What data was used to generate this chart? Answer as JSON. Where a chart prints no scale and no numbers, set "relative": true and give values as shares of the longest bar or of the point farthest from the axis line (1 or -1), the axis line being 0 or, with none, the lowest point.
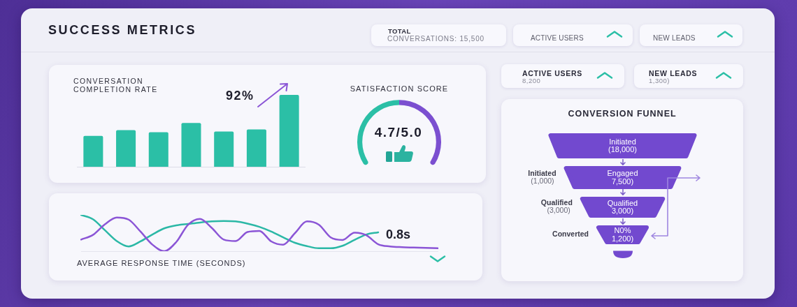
{
  "chart_data": [
    {
      "type": "other",
      "title": "SUCCESS METRICS"
    },
    {
      "type": "other",
      "title": "TOTAL",
      "subtitle": "CONVERSATIONS: 15,500"
    },
    {
      "type": "other",
      "title": "ACTIVE USERS"
    },
    {
      "type": "other",
      "title": "NEW LEADS"
    },
    {
      "type": "bar",
      "title": "CONVERSATION COMPLETION RATE",
      "relative": true,
      "categories": [
        null,
        null,
        null,
        null,
        null,
        null,
        null
      ],
      "values": [
        0.43,
        0.51,
        0.48,
        0.61,
        0.49,
        0.52,
        1
      ],
      "color": "#2bbfa6",
      "annotations": [
        "92%"
      ]
    },
    {
      "type": "donut",
      "title": "SATISFACTION SCORE",
      "categories": [
        null,
        null
      ],
      "values": [
        50,
        50
      ],
      "colors": [
        "#2bbfa6",
        "#7b4fd0"
      ],
      "annotations": [
        "4.7/5.0"
      ]
    },
    {
      "type": "other",
      "title": "ACTIVE USERS",
      "subtitle": "8,200"
    },
    {
      "type": "other",
      "title": "NEW LEADS",
      "subtitle": "1,300)"
    },
    {
      "type": "other",
      "title": "CONVERSION FUNNEL",
      "categories": [
        "Initiated",
        "Engaged",
        "Qualified",
        "N0%"
      ],
      "values": [
        18000,
        7500,
        3000,
        1200
      ],
      "value_labels": [
        "(18,000)",
        "7,500)",
        "3,000)",
        "1,200)"
      ],
      "color": "#7249cf",
      "annotations": [
        "Initiated\n(1,000)",
        "Qualified\n(3,000)",
        "Converted"
      ]
    },
    {
      "type": "line",
      "title": "AVERAGE RESPONSE TIME (SECONDS)",
      "relative": true,
      "categories": [
        null,
        null,
        null,
        null,
        null,
        null,
        null,
        null,
        null,
        null,
        null,
        null,
        null,
        null,
        null,
        null,
        null,
        null,
        null,
        null,
        null,
        null,
        null,
        null,
        null,
        null,
        null,
        null,
        null,
        null,
        null
      ],
      "series": [
        {
          "color": "#8b55d6",
          "values": [
            0.32,
            0.45,
            0.74,
            0.93,
            0.87,
            0.54,
            0.18,
            0,
            0.25,
            0.73,
            0.89,
            0.64,
            0.32,
            0.28,
            0.53,
            0.56,
            0.27,
            0.18,
            0.5,
            0.82,
            0.73,
            0.38,
            0.31,
            0.51,
            0.44,
            0.19,
            0.13,
            0.11,
            0.1,
            0.09,
            0.08
          ]
        },
        {
          "color": "#2bb8a6",
          "values": [
            1,
            0.88,
            0.58,
            0.28,
            0.13,
            0.27,
            0.46,
            0.63,
            0.71,
            0.75,
            0.79,
            0.82,
            0.83,
            0.82,
            0.76,
            0.67,
            0.54,
            0.38,
            0.23,
            0.14,
            0.08,
            0.08,
            0.15,
            0.31,
            0.46,
            0.52,
            null,
            null,
            null,
            null,
            null
          ]
        }
      ],
      "marker": "none",
      "annotations": [
        "0.8s"
      ]
    }
  ]
}
